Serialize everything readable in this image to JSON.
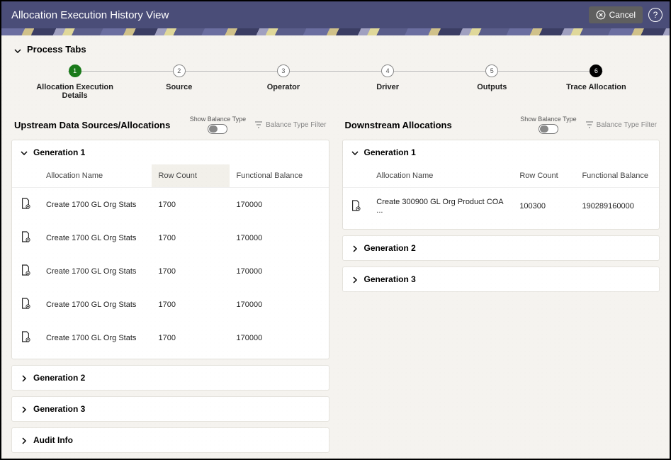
{
  "header": {
    "title": "Allocation Execution History View",
    "cancel_label": "Cancel"
  },
  "process_tabs": {
    "title": "Process Tabs",
    "steps": [
      {
        "num": "1",
        "label": "Allocation Execution Details",
        "state": "active"
      },
      {
        "num": "2",
        "label": "Source",
        "state": "idle"
      },
      {
        "num": "3",
        "label": "Operator",
        "state": "idle"
      },
      {
        "num": "4",
        "label": "Driver",
        "state": "idle"
      },
      {
        "num": "5",
        "label": "Outputs",
        "state": "idle"
      },
      {
        "num": "6",
        "label": "Trace Allocation",
        "state": "current"
      }
    ]
  },
  "upstream": {
    "title": "Upstream Data Sources/Allocations",
    "show_balance_label": "Show Balance Type",
    "filter_label": "Balance Type Filter",
    "gen1_label": "Generation 1",
    "gen2_label": "Generation 2",
    "gen3_label": "Generation 3",
    "audit_label": "Audit Info",
    "columns": {
      "name": "Allocation Name",
      "row_count": "Row Count",
      "func_bal": "Functional Balance"
    },
    "rows": [
      {
        "name": "Create 1700 GL Org Stats",
        "row_count": "1700",
        "func_bal": "170000"
      },
      {
        "name": "Create 1700 GL Org Stats",
        "row_count": "1700",
        "func_bal": "170000"
      },
      {
        "name": "Create 1700 GL Org Stats",
        "row_count": "1700",
        "func_bal": "170000"
      },
      {
        "name": "Create 1700 GL Org Stats",
        "row_count": "1700",
        "func_bal": "170000"
      },
      {
        "name": "Create 1700 GL Org Stats",
        "row_count": "1700",
        "func_bal": "170000"
      }
    ]
  },
  "downstream": {
    "title": "Downstream Allocations",
    "show_balance_label": "Show Balance Type",
    "filter_label": "Balance Type Filter",
    "gen1_label": "Generation 1",
    "gen2_label": "Generation 2",
    "gen3_label": "Generation 3",
    "columns": {
      "name": "Allocation Name",
      "row_count": "Row Count",
      "func_bal": "Functional Balance"
    },
    "rows": [
      {
        "name": "Create 300900 GL Org Product COA ...",
        "row_count": "100300",
        "func_bal": "190289160000"
      }
    ]
  },
  "colors": {
    "header_bg": "#4a4d78",
    "body_bg": "#f5f3ef",
    "active_step": "#1a7a1a",
    "current_step": "#000000"
  }
}
